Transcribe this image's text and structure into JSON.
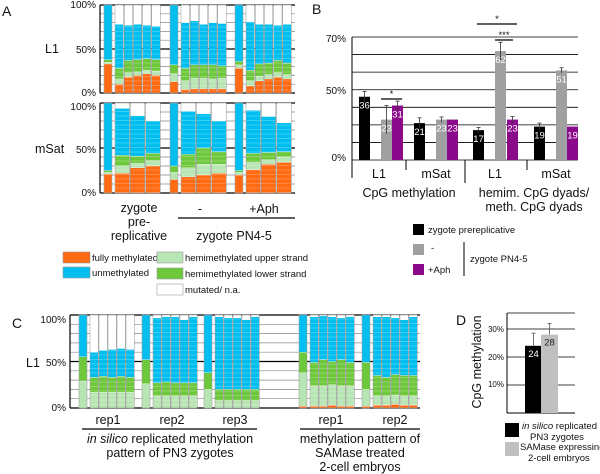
{
  "colors": {
    "fm": "#ff6a13",
    "hu": "#b8e5b4",
    "hl": "#6ec83c",
    "un": "#00bff0",
    "mut": "#ffffff",
    "black": "#000000",
    "gray": "#a0a0a0",
    "purple": "#8b0a8b",
    "lightgray": "#c0c0c0"
  },
  "chart_data": [
    {
      "panel": "A",
      "type": "bar",
      "stacked": true,
      "segment_order": [
        "fully methylated",
        "hemimethylated upper strand",
        "hemimethylated lower strand",
        "unmethylated",
        "mutated/ n.a."
      ],
      "yticks": [
        "100%",
        "50%",
        "0%"
      ],
      "rows": [
        {
          "label": "L1",
          "groups": [
            {
              "summary": [
                33,
                2,
                3,
                62,
                0
              ],
              "columns": [
                [
                  10,
                  6,
                  12,
                  50,
                  22
                ],
                [
                  18,
                  5,
                  14,
                  40,
                  23
                ],
                [
                  20,
                  4,
                  14,
                  40,
                  22
                ],
                [
                  22,
                  4,
                  13,
                  38,
                  23
                ],
                [
                  20,
                  5,
                  13,
                  38,
                  24
                ]
              ]
            },
            {
              "summary": [
                13,
                9,
                10,
                68,
                0
              ],
              "columns": [
                [
                  4,
                  10,
                  14,
                  52,
                  20
                ],
                [
                  5,
                  12,
                  15,
                  50,
                  18
                ],
                [
                  5,
                  12,
                  15,
                  46,
                  22
                ],
                [
                  5,
                  11,
                  16,
                  48,
                  20
                ],
                [
                  5,
                  12,
                  14,
                  48,
                  21
                ]
              ]
            },
            {
              "summary": [
                28,
                4,
                4,
                64,
                0
              ],
              "columns": [
                [
                  8,
                  6,
                  12,
                  55,
                  19
                ],
                [
                  14,
                  5,
                  14,
                  45,
                  22
                ],
                [
                  16,
                  5,
                  13,
                  44,
                  22
                ],
                [
                  18,
                  5,
                  14,
                  40,
                  23
                ],
                [
                  16,
                  5,
                  13,
                  44,
                  22
                ]
              ]
            }
          ]
        },
        {
          "label": "mSat",
          "groups": [
            {
              "summary": [
                21,
                2,
                2,
                75,
                0
              ],
              "columns": [
                [
                  22,
                  8,
                  12,
                  52,
                  6
                ],
                [
                  28,
                  5,
                  8,
                  45,
                  14
                ],
                [
                  30,
                  6,
                  8,
                  36,
                  20
                ]
              ]
            },
            {
              "summary": [
                15,
                8,
                7,
                70,
                0
              ],
              "columns": [
                [
                  18,
                  10,
                  15,
                  48,
                  9
                ],
                [
                  20,
                  12,
                  18,
                  38,
                  12
                ],
                [
                  22,
                  10,
                  14,
                  34,
                  20
                ]
              ]
            },
            {
              "summary": [
                20,
                3,
                2,
                75,
                0
              ],
              "columns": [
                [
                  26,
                  8,
                  10,
                  48,
                  8
                ],
                [
                  32,
                  5,
                  8,
                  40,
                  15
                ],
                [
                  34,
                  6,
                  6,
                  32,
                  22
                ]
              ]
            }
          ]
        }
      ]
    },
    {
      "panel": "B",
      "type": "bar",
      "ylim": [
        0,
        70
      ],
      "yticks": [
        "70%",
        "50%",
        "0%"
      ],
      "series": [
        {
          "name": "zygote prereplicative",
          "values": [
            36,
            21,
            17,
            19
          ],
          "errors": [
            3,
            3,
            1.5,
            2
          ]
        },
        {
          "name": "-",
          "values": [
            23,
            23,
            62,
            51
          ],
          "errors": [
            8,
            1.5,
            5,
            1.5
          ]
        },
        {
          "name": "+Aph",
          "values": [
            31,
            23,
            23,
            19
          ],
          "errors": [
            2.5,
            0,
            1.8,
            0
          ]
        }
      ],
      "categories": [
        "L1",
        "mSat",
        "L1",
        "mSat"
      ],
      "category_groups": [
        "CpG methylation",
        "hemim. CpG dyads/",
        "meth. CpG dyads"
      ],
      "significance": [
        "*",
        "*",
        "***"
      ]
    },
    {
      "panel": "C",
      "type": "bar",
      "stacked": true,
      "row_label": "L1",
      "yticks": [
        "100%",
        "50%",
        "0%"
      ],
      "groups": [
        {
          "label": "rep1",
          "summary": [
            0,
            29,
            26,
            45,
            0
          ],
          "columns": [
            [
              0,
              17,
              16,
              27,
              40
            ],
            [
              0,
              17,
              17,
              28,
              38
            ],
            [
              0,
              17,
              16,
              30,
              37
            ],
            [
              0,
              17,
              17,
              30,
              36
            ],
            [
              0,
              17,
              16,
              30,
              37
            ]
          ]
        },
        {
          "label": "rep2",
          "summary": [
            0,
            26,
            26,
            48,
            0
          ],
          "columns": [
            [
              0,
              13,
              14,
              70,
              3
            ],
            [
              0,
              13,
              15,
              70,
              2
            ],
            [
              0,
              13,
              14,
              71,
              2
            ],
            [
              0,
              13,
              14,
              68,
              5
            ],
            [
              0,
              13,
              14,
              71,
              2
            ]
          ]
        },
        {
          "label": "rep3",
          "summary": [
            0,
            20,
            18,
            62,
            0
          ],
          "columns": [
            [
              0,
              8,
              12,
              78,
              2
            ],
            [
              0,
              8,
              12,
              77,
              3
            ],
            [
              0,
              8,
              12,
              77,
              3
            ],
            [
              0,
              8,
              12,
              75,
              5
            ],
            [
              0,
              8,
              12,
              78,
              2
            ]
          ]
        },
        {
          "label": "rep1",
          "summary": [
            2,
            36,
            22,
            40,
            0
          ],
          "columns": [
            [
              2,
              22,
              25,
              49,
              2
            ],
            [
              2,
              22,
              28,
              47,
              1
            ],
            [
              3,
              22,
              25,
              48,
              2
            ],
            [
              2,
              22,
              28,
              45,
              3
            ],
            [
              2,
              22,
              25,
              49,
              2
            ]
          ]
        },
        {
          "label": "rep2",
          "summary": [
            2,
            18,
            29,
            51,
            0
          ],
          "columns": [
            [
              3,
              10,
              22,
              63,
              2
            ],
            [
              3,
              10,
              20,
              65,
              2
            ],
            [
              4,
              10,
              22,
              61,
              3
            ],
            [
              3,
              10,
              22,
              60,
              5
            ],
            [
              3,
              10,
              22,
              63,
              2
            ]
          ]
        }
      ],
      "group_titles": [
        [
          "in silico",
          " replicated methylation",
          "pattern of PN3 zygotes"
        ],
        [
          "methylation pattern of",
          "SAMase treated",
          "2-cell embryos"
        ]
      ]
    },
    {
      "panel": "D",
      "type": "bar",
      "ylabel": "CpG methylation",
      "yticks": [
        "30%",
        "20%",
        "10%"
      ],
      "ylim": [
        0,
        35
      ],
      "series": [
        {
          "name": "in silico replicated PN3 zygotes",
          "value": 24,
          "error": 4.5
        },
        {
          "name": "SAMase expressing 2-cell embryos",
          "value": 28,
          "error": 4
        }
      ]
    }
  ],
  "panel_a": {
    "label": "A",
    "rows": [
      "L1",
      "mSat"
    ],
    "ticks": [
      "100%",
      "50%",
      "0%"
    ],
    "xlabels": {
      "g1": [
        "zygote",
        "pre-",
        "replicative"
      ],
      "g2": "-",
      "g3": "+Aph",
      "bracket": "zygote PN4-5"
    },
    "legend": [
      "fully methylated",
      "unmethylated",
      "hemimethylated upper strand",
      "hemimethylated lower strand",
      "mutated/ n.a."
    ]
  },
  "panel_b": {
    "label": "B",
    "ticks": [
      "70%",
      "50%",
      "0%"
    ],
    "cats": [
      "L1",
      "mSat",
      "L1",
      "mSat"
    ],
    "group1": "CpG methylation",
    "group2": [
      "hemim. CpG dyads/",
      "meth. CpG dyads"
    ],
    "sig": [
      "*",
      "*",
      "***"
    ],
    "legend": {
      "black": "zygote prereplicative",
      "gray": "-",
      "purple": "+Aph",
      "bracket": "zygote PN4-5"
    }
  },
  "panel_c": {
    "label": "C",
    "row": "L1",
    "ticks": [
      "100%",
      "50%",
      "0%"
    ],
    "reps": [
      "rep1",
      "rep2",
      "rep3",
      "rep1",
      "rep2"
    ],
    "title1_italic": "in silico",
    "title1_rest": " replicated methylation",
    "title1_line2": "pattern of PN3 zygotes",
    "title2": [
      "methylation pattern of",
      "SAMase treated",
      "2-cell embryos"
    ]
  },
  "panel_d": {
    "label": "D",
    "ylabel": "CpG methylation",
    "ticks": [
      "30%",
      "20%",
      "10%"
    ],
    "values": [
      "24",
      "28"
    ],
    "legend1_italic": "in silico",
    "legend1_rest": " replicated",
    "legend1_line2": "PN3 zygotes",
    "legend2": [
      "SAMase expressing",
      "2-cell embryos"
    ]
  }
}
